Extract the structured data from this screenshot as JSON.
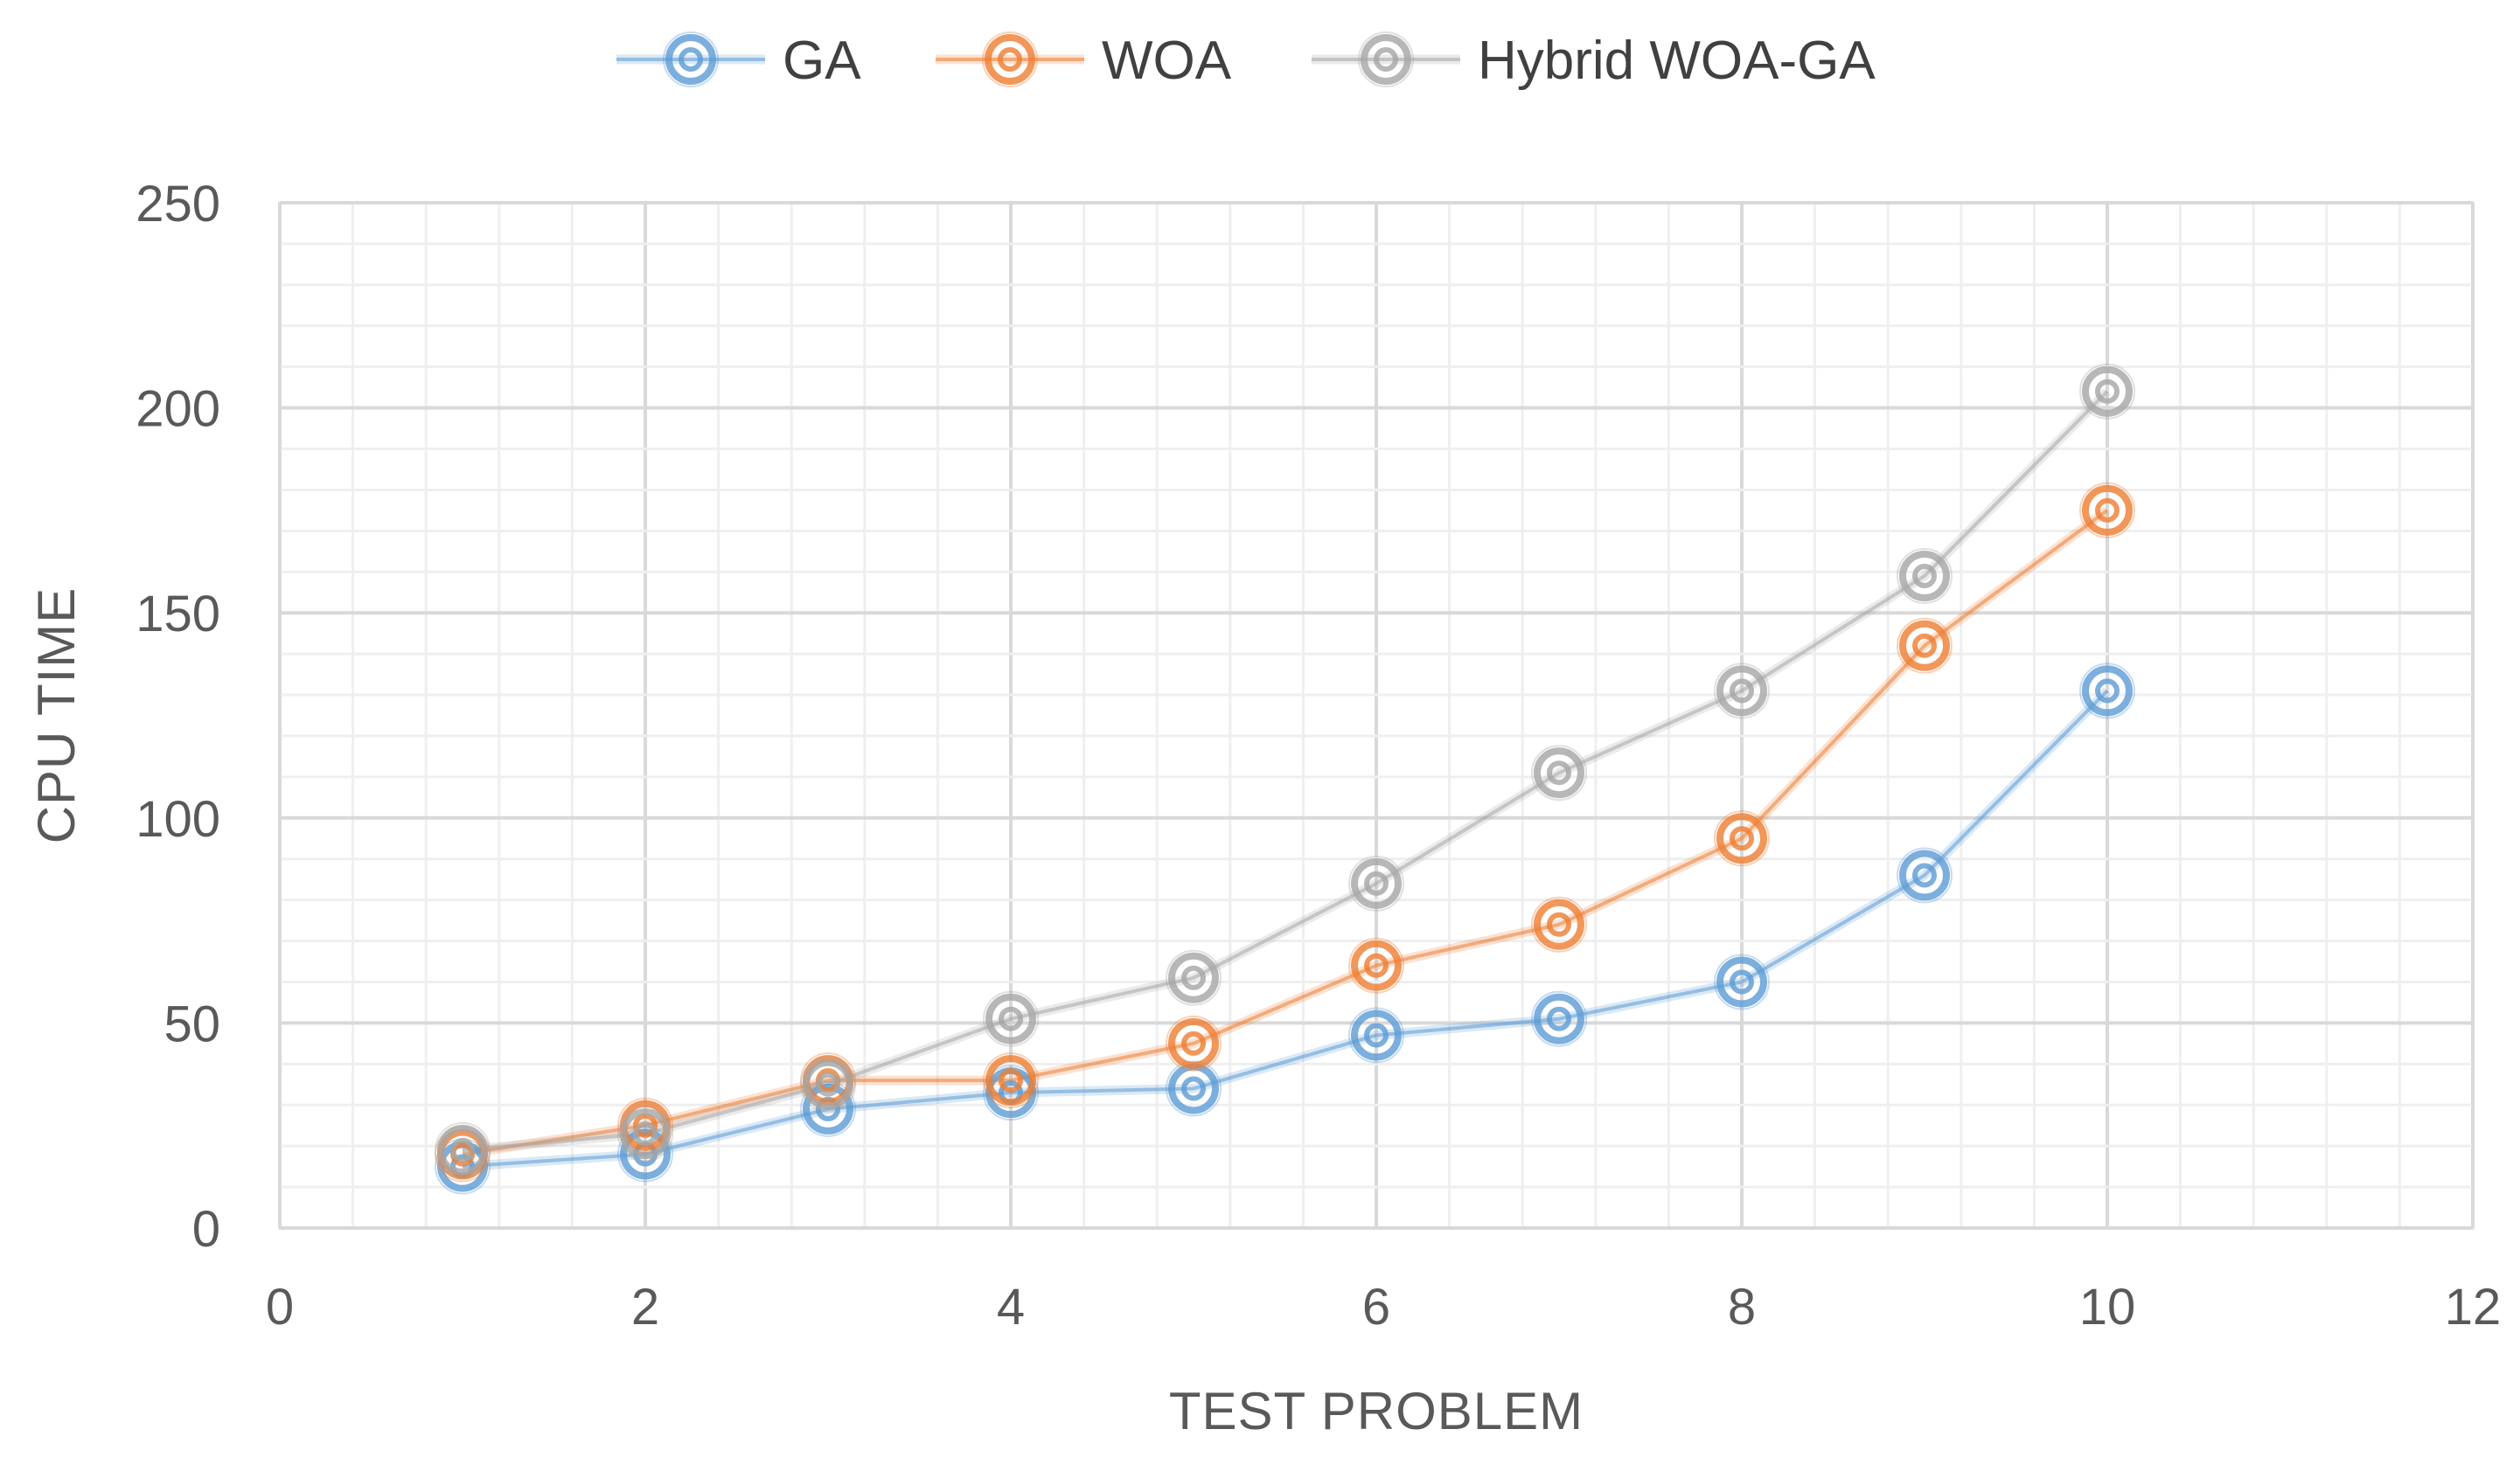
{
  "chart_data": {
    "type": "scatter",
    "title": "",
    "xlabel": "TEST PROBLEM",
    "ylabel": "CPU TIME",
    "xlim": [
      0,
      12
    ],
    "ylim": [
      0,
      250
    ],
    "xticks": [
      0,
      2,
      4,
      6,
      8,
      10,
      12
    ],
    "yticks": [
      0,
      50,
      100,
      150,
      200,
      250
    ],
    "grid": "major and minor",
    "legend_position": "top",
    "x": [
      1,
      2,
      3,
      4,
      5,
      6,
      7,
      8,
      9,
      10
    ],
    "series": [
      {
        "name": "GA",
        "color": "#5B9BD5",
        "values": [
          15,
          18,
          29,
          33,
          34,
          47,
          51,
          60,
          86,
          131
        ]
      },
      {
        "name": "WOA",
        "color": "#ED7D31",
        "values": [
          18,
          25,
          36,
          36,
          45,
          64,
          74,
          95,
          142,
          175
        ]
      },
      {
        "name": "Hybrid WOA-GA",
        "color": "#A5A5A5",
        "values": [
          19,
          23,
          35,
          51,
          61,
          84,
          111,
          131,
          159,
          204
        ]
      }
    ]
  }
}
